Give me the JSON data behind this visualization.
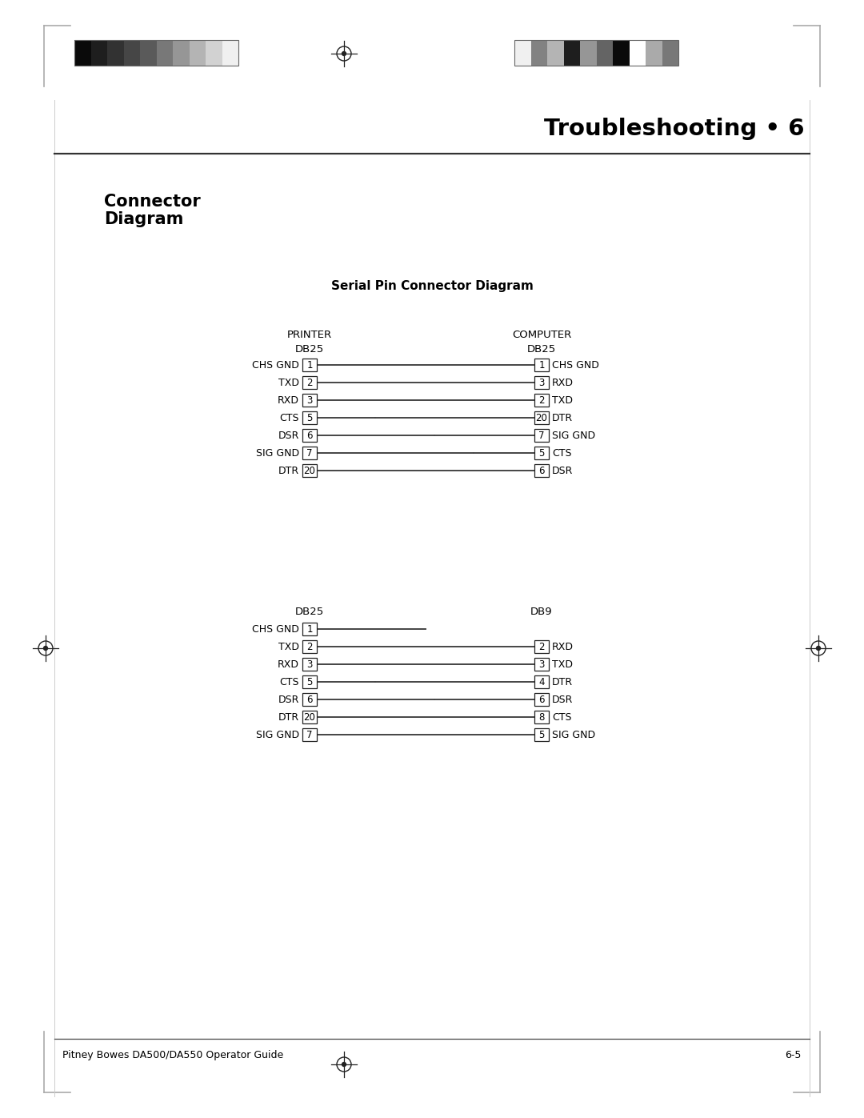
{
  "title": "Troubleshooting • 6",
  "subtitle": "Serial Pin Connector Diagram",
  "footer_left": "Pitney Bowes DA500/DA550 Operator Guide",
  "footer_right": "6-5",
  "bg_color": "#ffffff",
  "line_color": "#444444",
  "header_bar1_colors": [
    "#0a0a0a",
    "#1e1e1e",
    "#323232",
    "#464646",
    "#5a5a5a",
    "#787878",
    "#969696",
    "#b4b4b4",
    "#d2d2d2",
    "#f0f0f0"
  ],
  "header_bar2_colors": [
    "#f0f0f0",
    "#828282",
    "#b4b4b4",
    "#1e1e1e",
    "#969696",
    "#646464",
    "#0a0a0a",
    "#ffffff",
    "#aaaaaa",
    "#787878"
  ],
  "diagram1": {
    "left_header": "PRINTER",
    "left_subheader": "DB25",
    "right_header": "COMPUTER",
    "right_subheader": "DB25",
    "left_pins": [
      {
        "label": "CHS GND",
        "pin": "1"
      },
      {
        "label": "TXD",
        "pin": "2"
      },
      {
        "label": "RXD",
        "pin": "3"
      },
      {
        "label": "CTS",
        "pin": "5"
      },
      {
        "label": "DSR",
        "pin": "6"
      },
      {
        "label": "SIG GND",
        "pin": "7"
      },
      {
        "label": "DTR",
        "pin": "20"
      }
    ],
    "right_pins": [
      {
        "label": "CHS GND",
        "pin": "1"
      },
      {
        "label": "RXD",
        "pin": "3"
      },
      {
        "label": "TXD",
        "pin": "2"
      },
      {
        "label": "DTR",
        "pin": "20"
      },
      {
        "label": "SIG GND",
        "pin": "7"
      },
      {
        "label": "CTS",
        "pin": "5"
      },
      {
        "label": "DSR",
        "pin": "6"
      }
    ]
  },
  "diagram2": {
    "left_header": "DB25",
    "right_header": "DB9",
    "left_pins": [
      {
        "label": "CHS GND",
        "pin": "1"
      },
      {
        "label": "TXD",
        "pin": "2"
      },
      {
        "label": "RXD",
        "pin": "3"
      },
      {
        "label": "CTS",
        "pin": "5"
      },
      {
        "label": "DSR",
        "pin": "6"
      },
      {
        "label": "DTR",
        "pin": "20"
      },
      {
        "label": "SIG GND",
        "pin": "7"
      }
    ],
    "right_pins": [
      {
        "label": "RXD",
        "pin": "2"
      },
      {
        "label": "TXD",
        "pin": "3"
      },
      {
        "label": "DTR",
        "pin": "4"
      },
      {
        "label": "DSR",
        "pin": "6"
      },
      {
        "label": "CTS",
        "pin": "8"
      },
      {
        "label": "SIG GND",
        "pin": "5"
      }
    ]
  }
}
